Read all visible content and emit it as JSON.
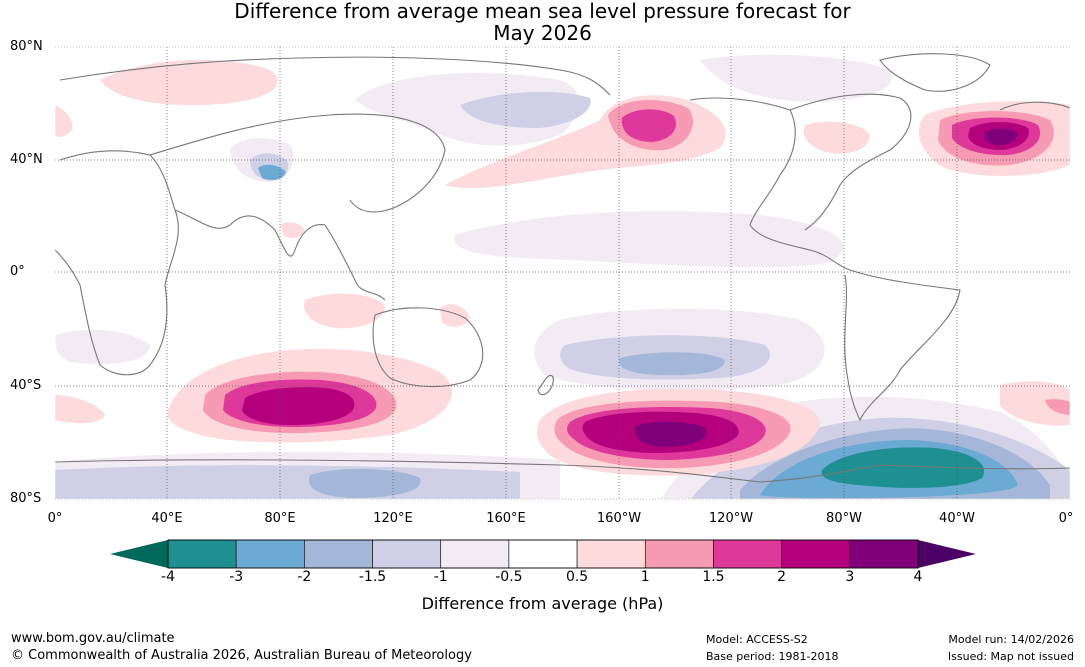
{
  "title": {
    "line1": "Difference from average mean sea level pressure forecast for",
    "line2": "May 2026"
  },
  "map": {
    "lat_labels": [
      "80°N",
      "40°N",
      "0°",
      "40°S",
      "80°S"
    ],
    "lon_labels": [
      "0°",
      "40°E",
      "80°E",
      "120°E",
      "160°E",
      "160°W",
      "120°W",
      "80°W",
      "40°W",
      "0°"
    ],
    "anomaly_regions": [
      {
        "name": "north-pacific-high",
        "center_lon": 198,
        "center_lat": 50,
        "peak_hpa": 2
      },
      {
        "name": "north-atlantic-high",
        "center_lon": 335,
        "center_lat": 48,
        "peak_hpa": 3
      },
      {
        "name": "south-indian-ocean-high",
        "center_lon": 85,
        "center_lat": -48,
        "peak_hpa": 3
      },
      {
        "name": "south-pacific-high",
        "center_lon": 220,
        "center_lat": -57,
        "peak_hpa": 4
      },
      {
        "name": "amundsen-bellingshausen-low",
        "center_lon": 300,
        "center_lat": -70,
        "peak_hpa": -4
      },
      {
        "name": "south-pacific-low",
        "center_lon": 220,
        "center_lat": -31,
        "peak_hpa": -1.5
      }
    ]
  },
  "colorbar": {
    "ticks": [
      "-4",
      "-3",
      "-2",
      "-1.5",
      "-1",
      "-0.5",
      "0.5",
      "1",
      "1.5",
      "2",
      "3",
      "4"
    ],
    "label": "Difference from average (hPa)",
    "colors": [
      "#00695c",
      "#1e9091",
      "#6aaad3",
      "#a4b7d8",
      "#cfd0e5",
      "#f2ebf4",
      "#ffffff",
      "#fddbdd",
      "#f69bb3",
      "#de389a",
      "#b4007c",
      "#7f0079",
      "#4b0066"
    ]
  },
  "footer": {
    "website": "www.bom.gov.au/climate",
    "copyright": "© Commonwealth of Australia 2026, Australian Bureau of Meteorology",
    "model": "Model: ACCESS-S2",
    "base_period": "Base period: 1981-2018",
    "model_run": "Model run: 14/02/2026",
    "issued": "Issued: Map not issued"
  }
}
